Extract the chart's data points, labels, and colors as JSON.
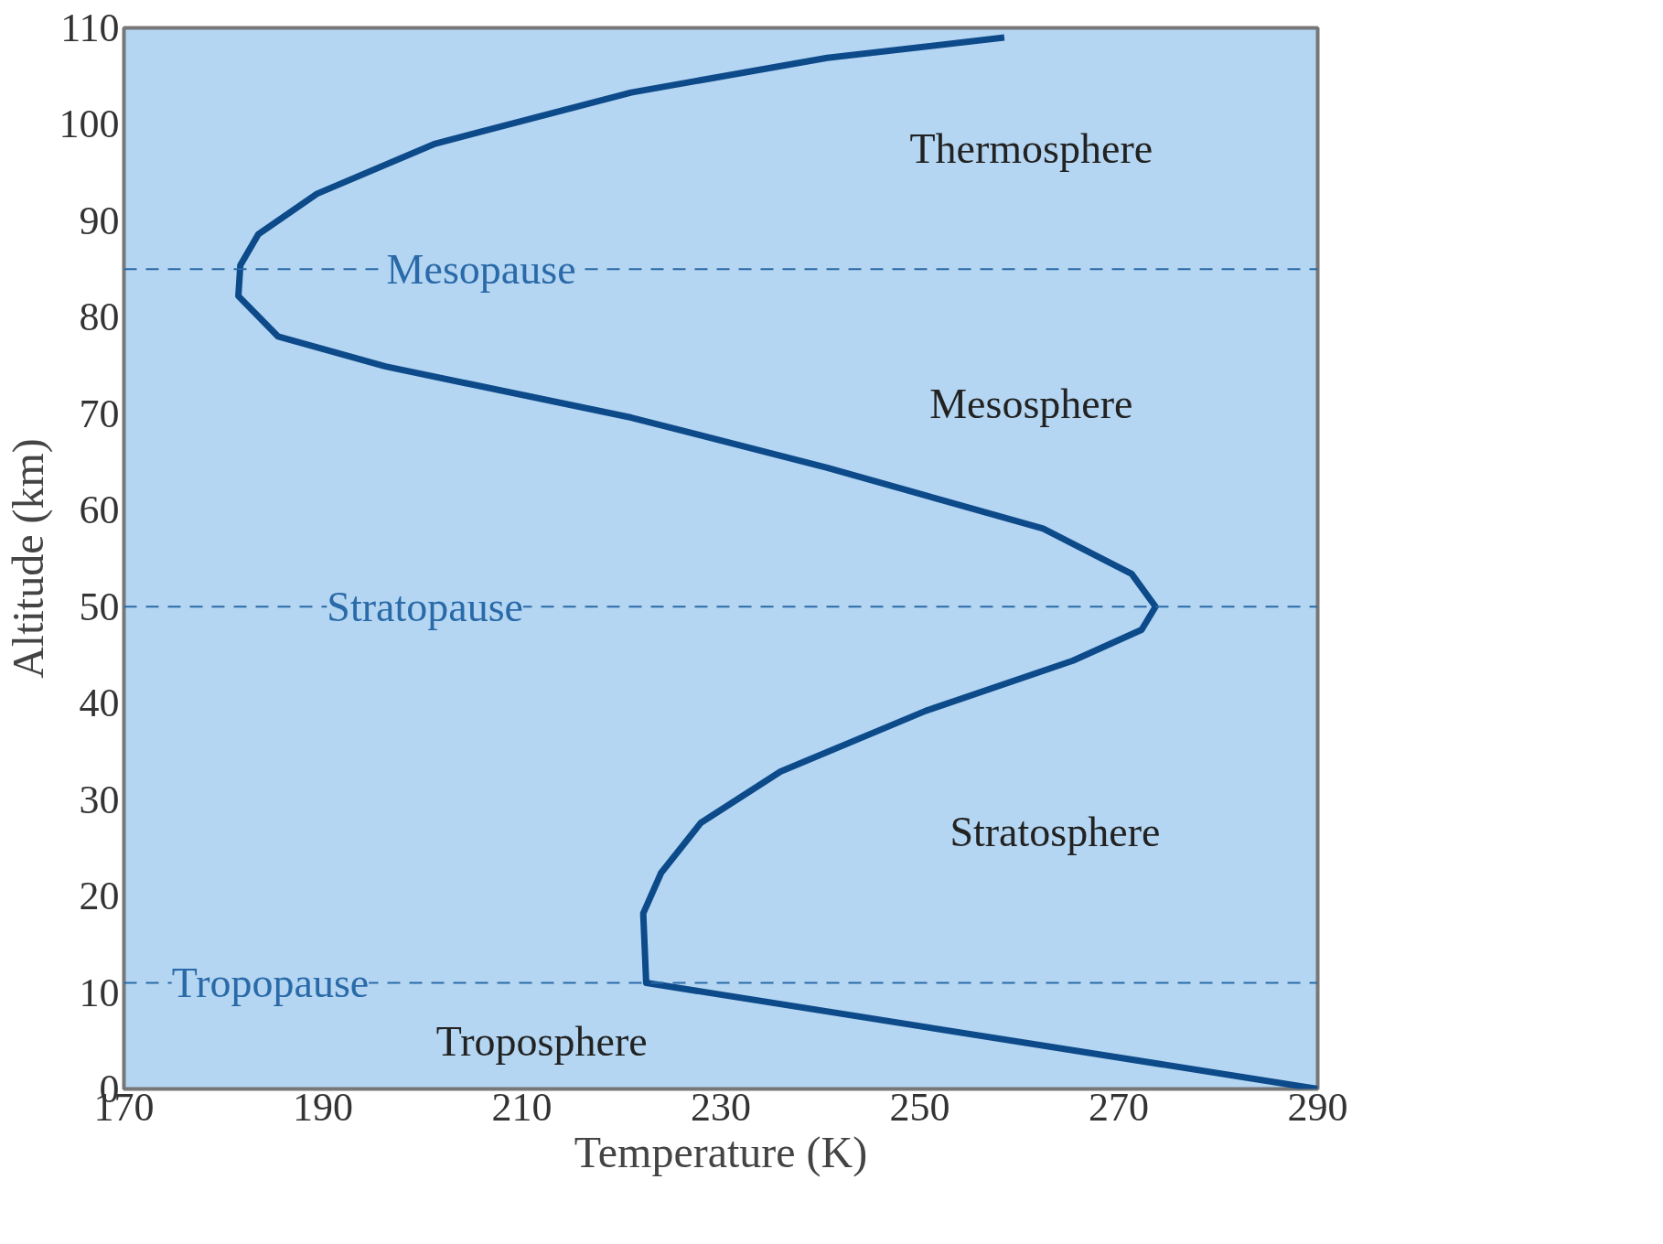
{
  "chart_data": {
    "type": "line",
    "xlabel": "Temperature (K)",
    "ylabel": "Altitude (km)",
    "xlim": [
      170,
      290
    ],
    "xticks": [
      170,
      190,
      210,
      230,
      250,
      270,
      290
    ],
    "ylim": [
      0,
      110
    ],
    "yticks": [
      0,
      10,
      20,
      30,
      40,
      50,
      60,
      70,
      80,
      90,
      100,
      110
    ],
    "grid": false,
    "marker": "none",
    "line_style": "solid",
    "series": [
      {
        "color": "#0d4a8a",
        "x": [
          290,
          222.5,
          222.2,
          224,
          228,
          236,
          250.6,
          265.4,
          272.3,
          273.7,
          271.3,
          262.4,
          240.7,
          221,
          196.3,
          185.5,
          181.5,
          181.7,
          183.5,
          189.4,
          201.3,
          221,
          240.7,
          258.5
        ],
        "values": [
          0,
          11,
          18.2,
          22.4,
          27.6,
          32.9,
          39.2,
          44.4,
          47.6,
          50,
          53.4,
          58.1,
          64.4,
          69.6,
          74.9,
          78,
          82.2,
          85.4,
          88.6,
          92.8,
          98,
          103.3,
          106.9,
          109
        ]
      }
    ],
    "ref_lines": [
      {
        "axis": "y",
        "value": 85,
        "label": "Mesopause",
        "color": "#2a6aa8",
        "line_style": "dashed"
      },
      {
        "axis": "y",
        "value": 50,
        "label": "Stratopause",
        "color": "#2a6aa8",
        "line_style": "dashed"
      },
      {
        "axis": "y",
        "value": 11,
        "label": "Tropopause",
        "color": "#2a6aa8",
        "line_style": "dashed"
      }
    ],
    "annotations": [
      "Thermosphere",
      "Mesosphere",
      "Stratosphere",
      "Troposphere"
    ]
  }
}
